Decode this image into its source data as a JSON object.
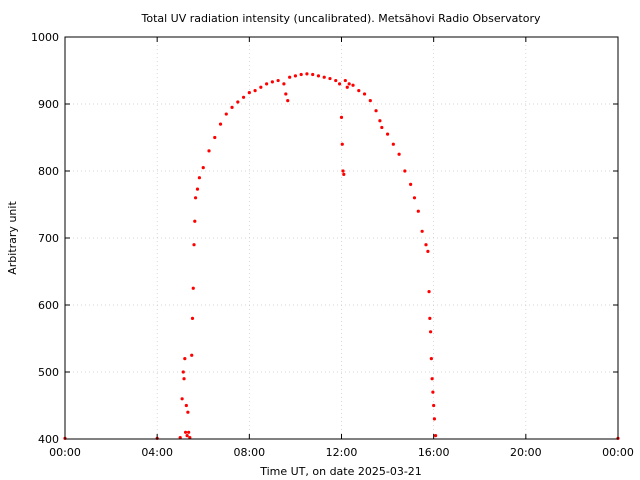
{
  "chart_data": {
    "type": "scatter",
    "title": "Total UV radiation intensity (uncalibrated). Metsähovi Radio Observatory",
    "xlabel": "Time UT, on date 2025-03-21",
    "ylabel": "Arbitrary unit",
    "xlim": [
      "00:00",
      "24:00"
    ],
    "ylim": [
      400,
      1000
    ],
    "grid": true,
    "color": "#ff0000",
    "x_ticks": [
      "00:00",
      "04:00",
      "08:00",
      "12:00",
      "16:00",
      "20:00",
      "00:00"
    ],
    "y_ticks": [
      "400",
      "500",
      "600",
      "700",
      "800",
      "900",
      "1000"
    ],
    "series": [
      {
        "x": [
          "00:00",
          "04:00",
          "05:00",
          "05:05",
          "05:08",
          "05:10",
          "05:12",
          "05:14",
          "05:16",
          "05:18",
          "05:20",
          "05:22",
          "05:25",
          "05:30",
          "05:32",
          "05:34",
          "05:36",
          "05:38",
          "05:40",
          "05:45",
          "05:50",
          "06:00",
          "06:15",
          "06:30",
          "06:45",
          "07:00",
          "07:15",
          "07:30",
          "07:45",
          "08:00",
          "08:15",
          "08:30",
          "08:45",
          "09:00",
          "09:15",
          "09:30",
          "09:35",
          "09:40",
          "09:45",
          "10:00",
          "10:15",
          "10:30",
          "10:45",
          "11:00",
          "11:15",
          "11:30",
          "11:45",
          "11:55",
          "12:00",
          "12:02",
          "12:04",
          "12:06",
          "12:10",
          "12:15",
          "12:20",
          "12:30",
          "12:45",
          "13:00",
          "13:15",
          "13:30",
          "13:40",
          "13:45",
          "14:00",
          "14:15",
          "14:30",
          "14:45",
          "15:00",
          "15:10",
          "15:20",
          "15:30",
          "15:40",
          "15:45",
          "15:48",
          "15:50",
          "15:52",
          "15:54",
          "15:56",
          "15:58",
          "16:00",
          "16:02",
          "16:05",
          "24:00"
        ],
        "y": [
          401,
          401,
          402,
          460,
          500,
          490,
          520,
          410,
          450,
          405,
          440,
          410,
          402,
          525,
          580,
          625,
          690,
          725,
          760,
          773,
          790,
          805,
          830,
          850,
          870,
          885,
          895,
          903,
          910,
          917,
          920,
          925,
          930,
          933,
          935,
          930,
          915,
          905,
          940,
          942,
          944,
          945,
          944,
          942,
          940,
          938,
          935,
          930,
          880,
          840,
          800,
          795,
          935,
          925,
          930,
          928,
          920,
          915,
          905,
          890,
          875,
          865,
          855,
          840,
          825,
          800,
          780,
          760,
          740,
          710,
          690,
          680,
          620,
          580,
          560,
          520,
          490,
          470,
          450,
          430,
          405,
          401
        ]
      }
    ]
  }
}
